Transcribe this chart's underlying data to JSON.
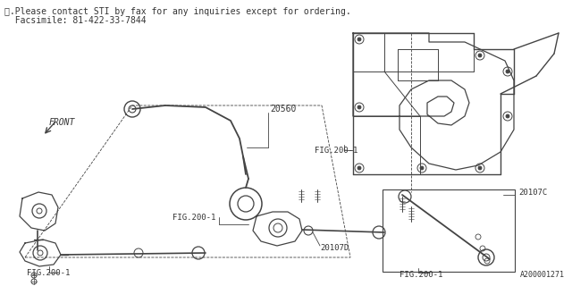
{
  "bg_color": "#ffffff",
  "line_color": "#444444",
  "text_color": "#333333",
  "title_line1": "※.Please contact STI by fax for any inquiries except for ordering.",
  "title_line2": "  Facsimile: 81-422-33-7844",
  "diagram_id": "A200001271",
  "front_label": "FRONT",
  "label_20560": "20560",
  "label_fig200_1a": "FIG.200-1",
  "label_fig200_1b": "FIG.200-1",
  "label_fig200_1c": "FIG.200-1",
  "label_fig200_1d": "FIG.200-1",
  "label_20107C": "20107C",
  "label_20107D": "20107D",
  "title_fontsize": 7.0,
  "label_fontsize": 6.5
}
